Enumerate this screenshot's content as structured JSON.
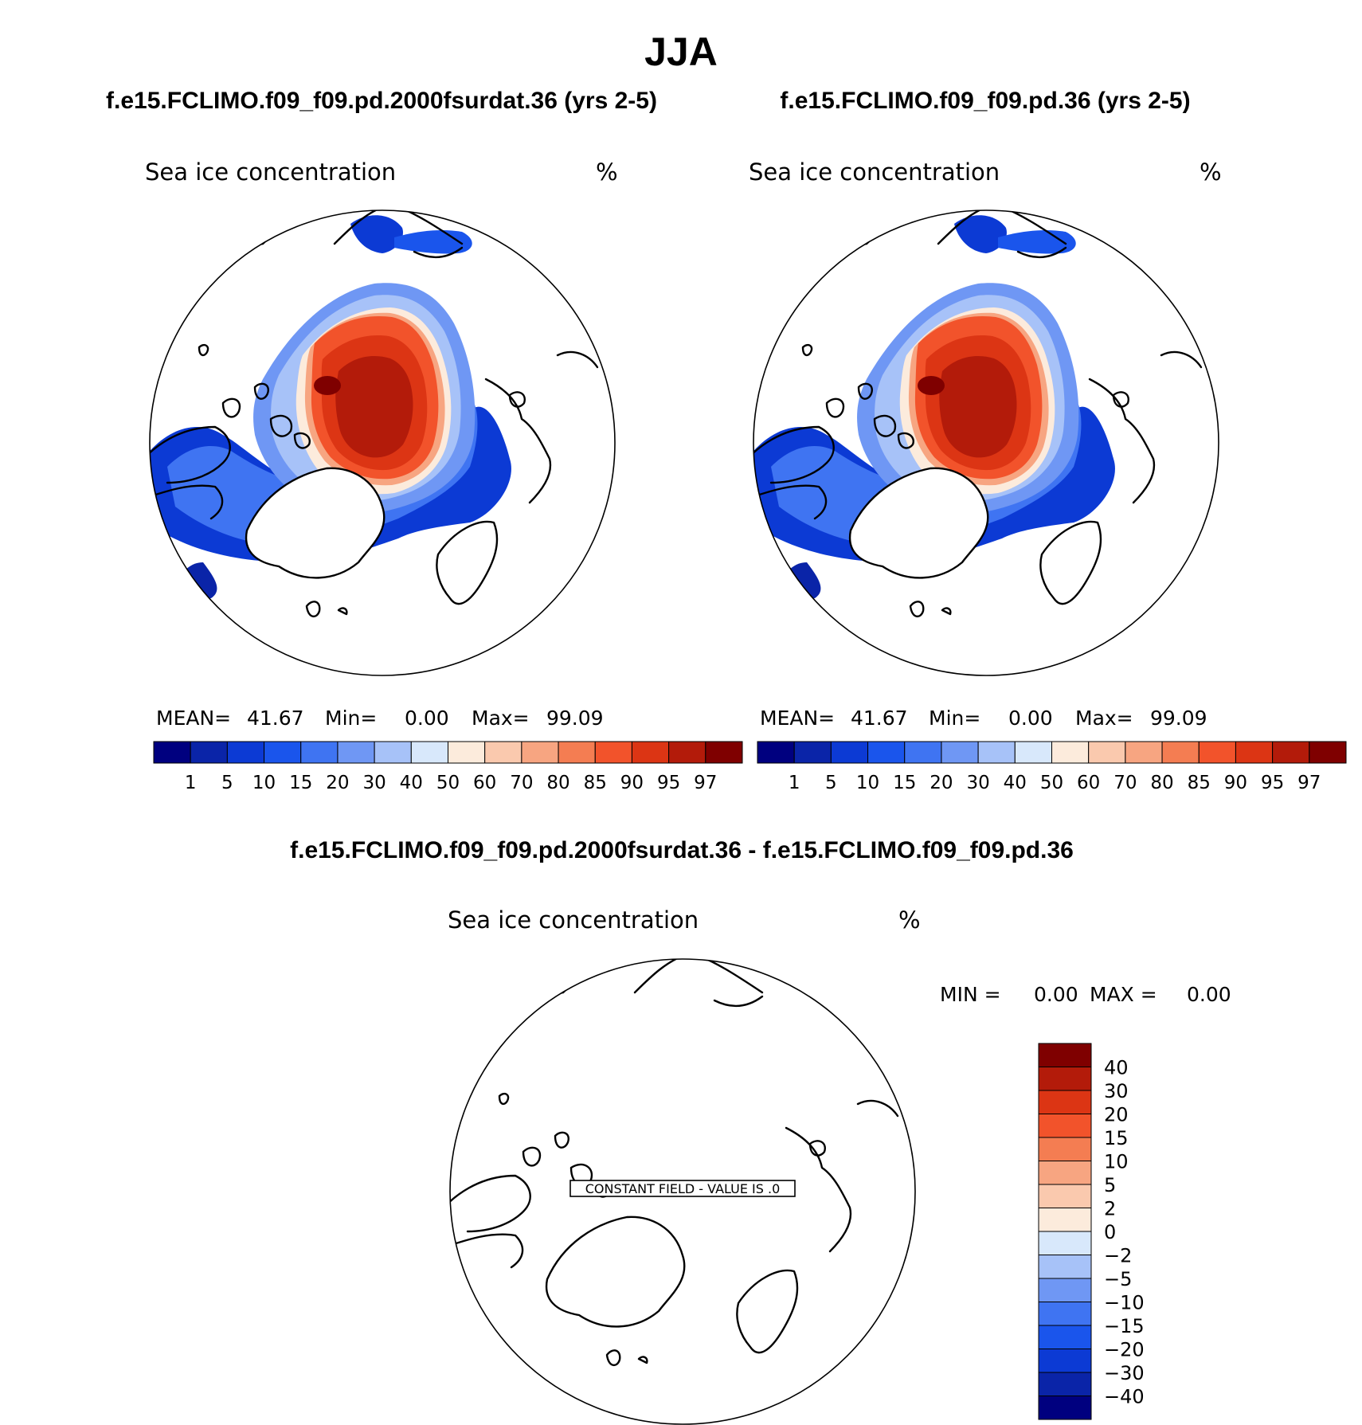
{
  "figure": {
    "season": "JJA",
    "left_case_title": "f.e15.FCLIMO.f09_f09.pd.2000fsurdat.36 (yrs 2-5)",
    "right_case_title": "f.e15.FCLIMO.f09_f09.pd.36 (yrs 2-5)",
    "diff_title": "f.e15.FCLIMO.f09_f09.pd.2000fsurdat.36 - f.e15.FCLIMO.f09_f09.pd.36"
  },
  "chart_data": [
    {
      "type": "map",
      "projection": "north polar stereographic",
      "variable": "Sea ice concentration",
      "units": "%",
      "stats": {
        "mean_label": "MEAN=",
        "mean": "41.67",
        "min_label": "Min=",
        "min": "0.00",
        "max_label": "Max=",
        "max": "99.09"
      },
      "colorbar": {
        "orientation": "horizontal",
        "levels": [
          "1",
          "5",
          "10",
          "15",
          "20",
          "30",
          "40",
          "50",
          "60",
          "70",
          "80",
          "85",
          "90",
          "95",
          "97"
        ],
        "colors": [
          "#00007f",
          "#0a24a8",
          "#0c3ad4",
          "#1a55ec",
          "#3f74f2",
          "#6f97f4",
          "#a7c2f8",
          "#d8e8fb",
          "#fcebdc",
          "#fac9ae",
          "#f7a581",
          "#f47d52",
          "#f2532b",
          "#dc3514",
          "#b31b0a",
          "#7f0000"
        ]
      }
    },
    {
      "type": "map",
      "projection": "north polar stereographic",
      "variable": "Sea ice concentration",
      "units": "%",
      "stats": {
        "mean_label": "MEAN=",
        "mean": "41.67",
        "min_label": "Min=",
        "min": "0.00",
        "max_label": "Max=",
        "max": "99.09"
      },
      "colorbar": {
        "orientation": "horizontal",
        "levels": [
          "1",
          "5",
          "10",
          "15",
          "20",
          "30",
          "40",
          "50",
          "60",
          "70",
          "80",
          "85",
          "90",
          "95",
          "97"
        ],
        "colors": [
          "#00007f",
          "#0a24a8",
          "#0c3ad4",
          "#1a55ec",
          "#3f74f2",
          "#6f97f4",
          "#a7c2f8",
          "#d8e8fb",
          "#fcebdc",
          "#fac9ae",
          "#f7a581",
          "#f47d52",
          "#f2532b",
          "#dc3514",
          "#b31b0a",
          "#7f0000"
        ]
      }
    },
    {
      "type": "map",
      "projection": "north polar stereographic",
      "variable": "Sea ice concentration",
      "units": "%",
      "constant_field_label": "CONSTANT FIELD - VALUE IS .0",
      "stats": {
        "min_label": "MIN =",
        "min": "0.00",
        "max_label": "MAX =",
        "max": "0.00"
      },
      "colorbar": {
        "orientation": "vertical",
        "levels": [
          "40",
          "30",
          "20",
          "15",
          "10",
          "5",
          "2",
          "0",
          "−2",
          "−5",
          "−10",
          "−15",
          "−20",
          "−30",
          "−40"
        ],
        "colors": [
          "#7f0000",
          "#b31b0a",
          "#dc3514",
          "#f2532b",
          "#f47d52",
          "#f7a581",
          "#fac9ae",
          "#fcebdc",
          "#d8e8fb",
          "#a7c2f8",
          "#6f97f4",
          "#3f74f2",
          "#1a55ec",
          "#0c3ad4",
          "#0a24a8",
          "#00007f"
        ]
      }
    }
  ]
}
